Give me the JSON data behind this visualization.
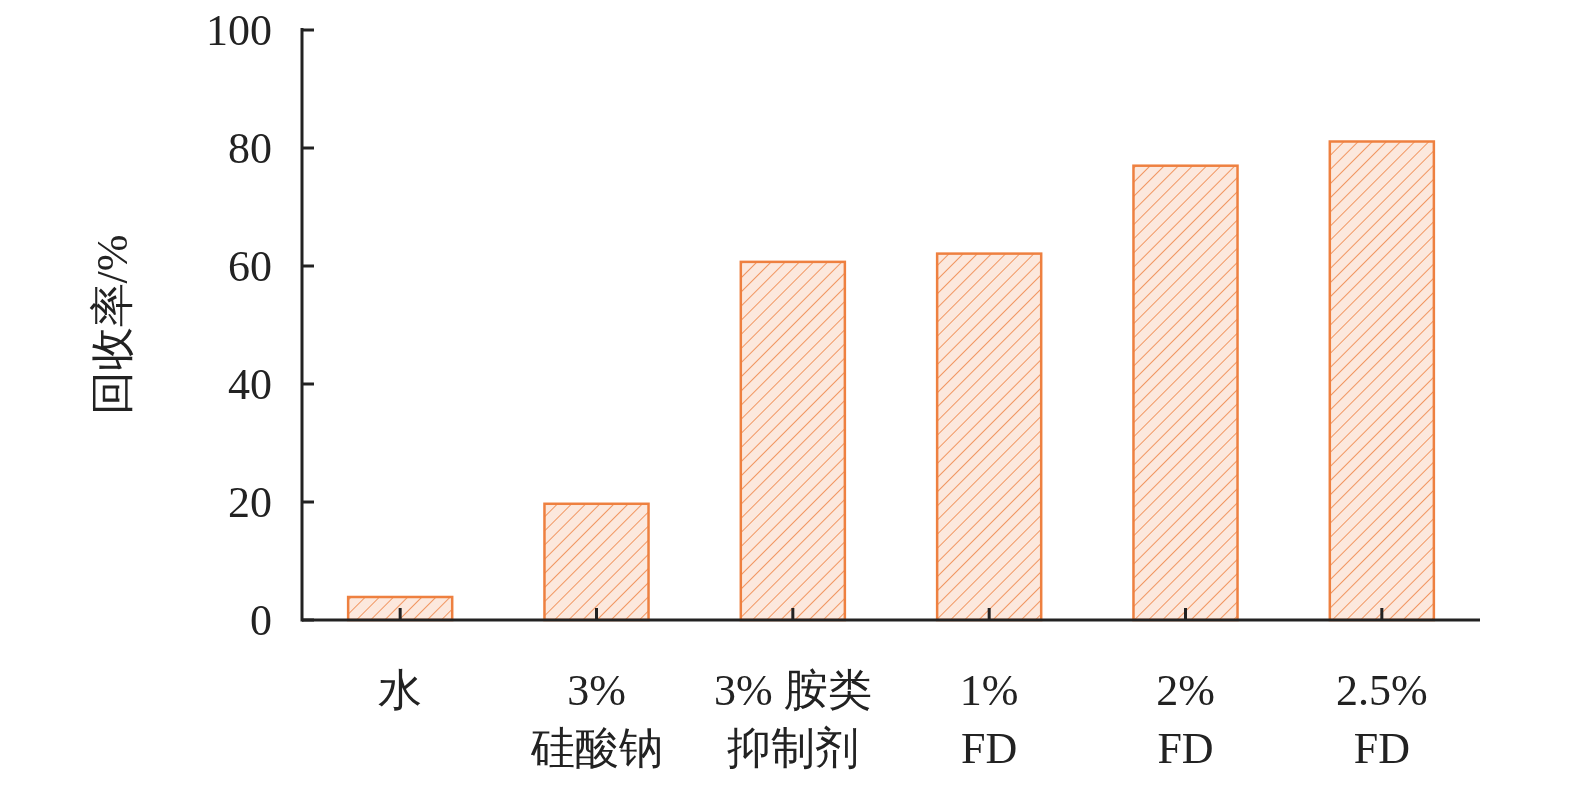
{
  "chart_data": {
    "type": "bar",
    "ylabel": "回收率/%",
    "categories": [
      "水",
      "3%\n硅酸钠",
      "3% 胺类抑制剂",
      "1%\nFD",
      "2%\nFD",
      "2.5%\nFD"
    ],
    "values": [
      3.9,
      19.7,
      60.7,
      62.1,
      77.0,
      81.1
    ],
    "color": "#ee8040",
    "ylim": [
      0,
      100
    ],
    "yticks": [
      0,
      20,
      40,
      60,
      80,
      100
    ],
    "grid": false
  }
}
